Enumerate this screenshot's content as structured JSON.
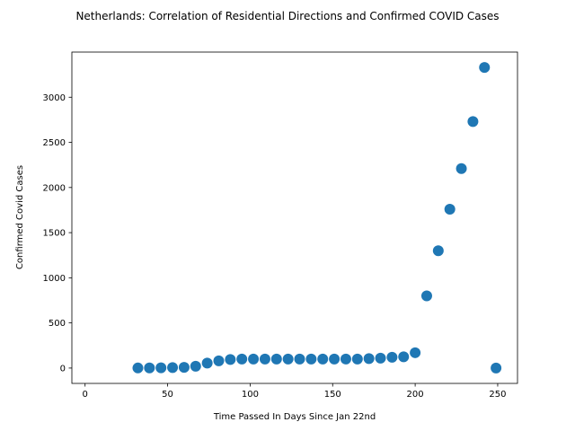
{
  "chart_data": {
    "type": "scatter",
    "title": "Netherlands: Correlation of Residential Directions and Confirmed COVID Cases",
    "xlabel": "Time Passed In Days Since Jan 22nd",
    "ylabel": "Confirmed Covid Cases",
    "xlim": [
      -8,
      262
    ],
    "ylim": [
      -170,
      3500
    ],
    "xticks": [
      0,
      50,
      100,
      150,
      200,
      250
    ],
    "yticks": [
      0,
      500,
      1000,
      1500,
      2000,
      2500,
      3000
    ],
    "grid": false,
    "legend": "none",
    "marker_color": "#1f77b4",
    "series": [
      {
        "x": [
          32,
          39,
          46,
          53,
          60,
          67,
          74,
          81,
          88,
          95,
          102,
          109,
          116,
          123,
          130,
          137,
          144,
          151,
          158,
          165,
          172,
          179,
          186,
          193,
          200,
          207,
          214,
          221,
          228,
          235,
          242,
          249
        ],
        "y": [
          1,
          2,
          3,
          5,
          8,
          20,
          55,
          80,
          95,
          100,
          100,
          100,
          100,
          100,
          100,
          100,
          100,
          100,
          100,
          100,
          105,
          110,
          120,
          125,
          170,
          800,
          1300,
          1760,
          2210,
          2730,
          3330,
          0
        ]
      }
    ]
  }
}
